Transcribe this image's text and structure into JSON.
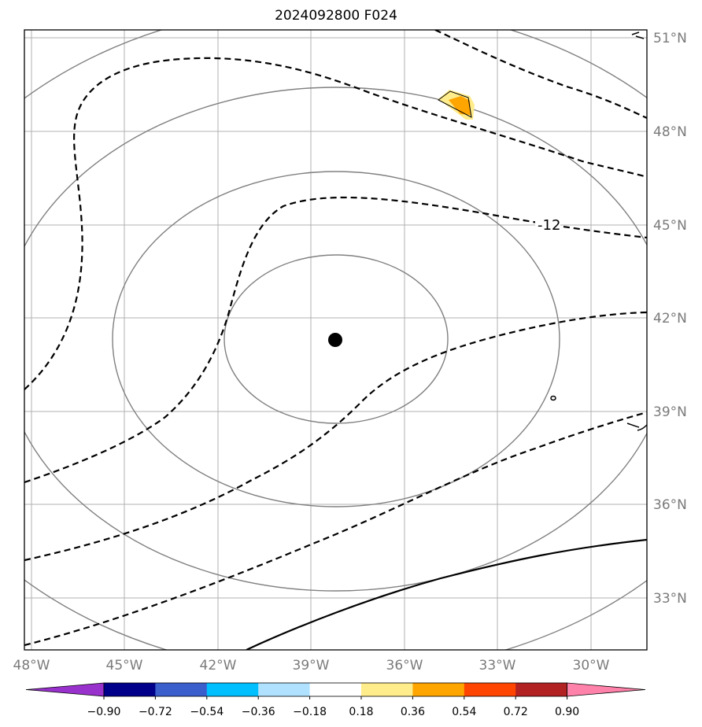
{
  "title": "2024092800 F024",
  "map": {
    "lon_labels": [
      "48°W",
      "45°W",
      "42°W",
      "39°W",
      "36°W",
      "33°W",
      "30°W"
    ],
    "lat_labels": [
      "51°N",
      "48°N",
      "45°N",
      "42°N",
      "39°N",
      "36°N",
      "33°N"
    ],
    "lon_range": [
      -48,
      -28
    ],
    "lat_range": [
      31.3,
      51.3
    ],
    "center_marker": {
      "lon": -38.0,
      "lat": 41.2
    },
    "contour_label": "-12"
  },
  "colorbar": {
    "tick_labels": [
      "−0.90",
      "−0.72",
      "−0.54",
      "−0.36",
      "−0.18",
      "0.18",
      "0.36",
      "0.54",
      "0.72",
      "0.90"
    ],
    "colors": [
      "#9932cc",
      "#00008b",
      "#3a5fcd",
      "#00bfff",
      "#b0e2ff",
      "#ffffff",
      "#ffec8b",
      "#ffa500",
      "#ff4500",
      "#b22222",
      "#ff82ab"
    ]
  }
}
